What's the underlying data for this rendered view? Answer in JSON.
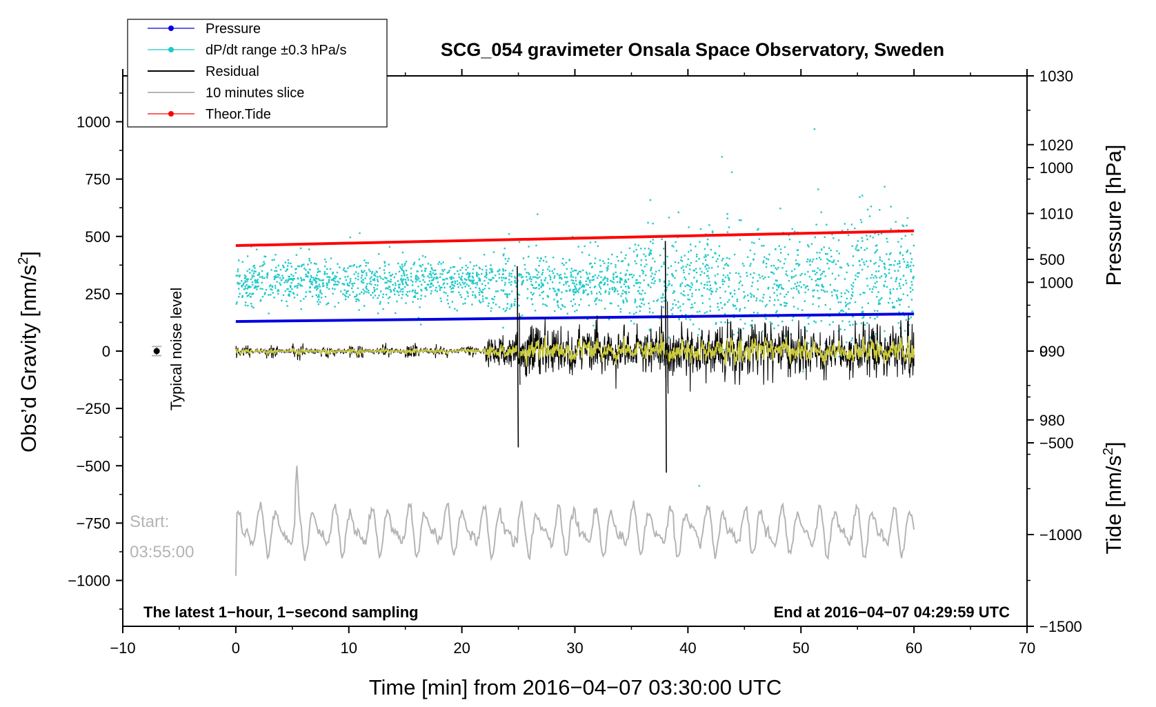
{
  "chart_data": {
    "type": "line",
    "title": "SCG_054 gravimeter Onsala Space Observatory, Sweden",
    "xlabel": "Time [min] from 2016−04−07 03:30:00 UTC",
    "ylabel_left": "Obs’d Gravity [nm/s2]",
    "ylabel_left_main": "Obs’d Gravity [nm/s",
    "ylabel_left_sup": "2",
    "ylabel_left_end": "]",
    "ylabel_right_pressure": "Pressure [hPa]",
    "ylabel_right_tide": "Tide [nm/s2]",
    "ylabel_right_tide_main": "Tide [nm/s",
    "ylabel_right_tide_sup": "2",
    "ylabel_right_tide_end": "]",
    "xlim": [
      -10,
      70
    ],
    "ylim_left": [
      -1200,
      1200
    ],
    "ylim_pressure": [
      950,
      1030
    ],
    "ylim_tide": [
      -1500,
      1500
    ],
    "x_ticks": [
      "−10",
      "0",
      "10",
      "20",
      "30",
      "40",
      "50",
      "60",
      "70"
    ],
    "x_tick_values": [
      -10,
      0,
      10,
      20,
      30,
      40,
      50,
      60,
      70
    ],
    "y_left_ticks": [
      "1000",
      "750",
      "500",
      "250",
      "0",
      "−250",
      "−500",
      "−750",
      "−1000"
    ],
    "y_left_tick_values": [
      1000,
      750,
      500,
      250,
      0,
      -250,
      -500,
      -750,
      -1000
    ],
    "y_pressure_ticks": [
      "1030",
      "1020",
      "1010",
      "1000",
      "990",
      "980"
    ],
    "y_pressure_tick_values": [
      1030,
      1020,
      1010,
      1000,
      990,
      980
    ],
    "y_tide_ticks": [
      "1000",
      "500",
      "0",
      "−500",
      "−1000",
      "−1500"
    ],
    "y_tide_tick_values": [
      1000,
      500,
      0,
      -500,
      -1000,
      -1500
    ],
    "legend": [
      {
        "label": "Pressure",
        "color": "#0000e0",
        "style": "line-dot"
      },
      {
        "label": "dP/dt range ±0.3 hPa/s",
        "color": "#20c8c8",
        "style": "line-dot"
      },
      {
        "label": "Residual",
        "color": "#000000",
        "style": "line"
      },
      {
        "label": "10 minutes slice",
        "color": "#b4b4b4",
        "style": "line"
      },
      {
        "label": "Theor.Tide",
        "color": "#ff0000",
        "style": "line-dot"
      }
    ],
    "series": [
      {
        "name": "Pressure",
        "axis": "pressure",
        "color": "#0000e0",
        "x": [
          0,
          60
        ],
        "values": [
          994.3,
          995.4
        ]
      },
      {
        "name": "Theor.Tide",
        "axis": "tide",
        "color": "#ff0000",
        "x": [
          0,
          60
        ],
        "values": [
          575,
          655
        ]
      },
      {
        "name": "Residual",
        "axis": "left",
        "color": "#000000",
        "x_range": [
          0,
          60
        ],
        "amplitude_note": "approx ±30 nm/s2 before 22 min, ±100 after, spikes to ~370/−420 at 24.9 min and ~480/−530 at 38 min"
      },
      {
        "name": "Filtered residual",
        "axis": "left",
        "color": "#d4d43a",
        "x_range": [
          0,
          60
        ]
      },
      {
        "name": "dP/dt range",
        "axis": "pressure",
        "color": "#20c8c8",
        "x_range": [
          0,
          60
        ],
        "center_hPa": 1000
      },
      {
        "name": "10 minutes slice",
        "axis": "left",
        "color": "#b4b4b4",
        "x_range": [
          0,
          60
        ],
        "center_nms2": -780,
        "start_label": "Start:",
        "start_time": "03:55:00"
      }
    ],
    "noise_marker": {
      "x": -7,
      "y": 0,
      "error": 20,
      "label": "Typical noise level"
    },
    "note_left": "The latest 1−hour, 1−second sampling",
    "note_right": "End at 2016−04−07 04:29:59 UTC",
    "spikes": [
      {
        "x": 24.9,
        "max": 370,
        "min": -420
      },
      {
        "x": 38.0,
        "max": 480,
        "min": -530
      }
    ]
  }
}
